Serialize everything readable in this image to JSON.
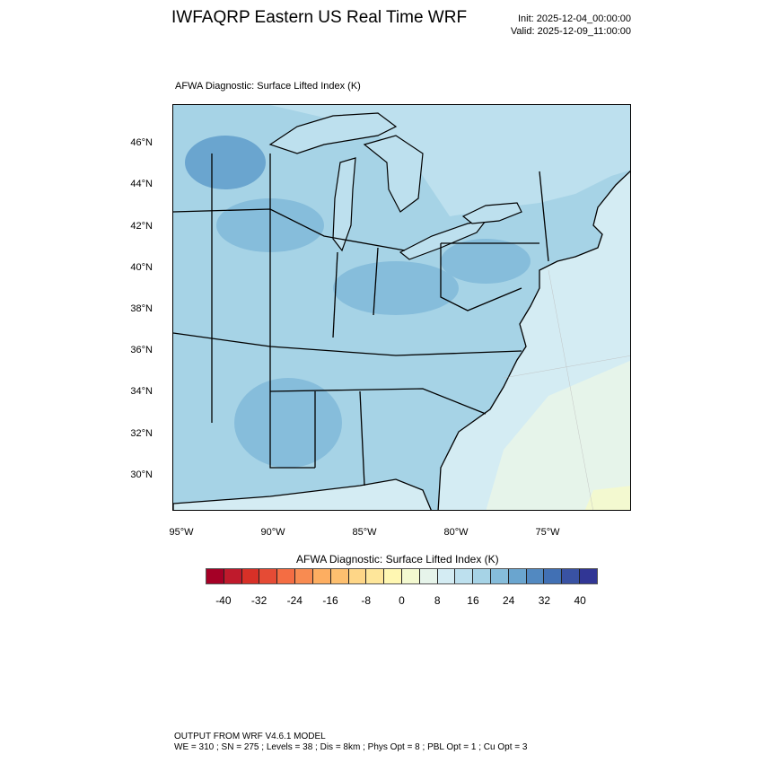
{
  "header": {
    "title": "IWFAQRP Eastern US Real Time WRF",
    "init": "Init: 2025-12-04_00:00:00",
    "valid": "Valid: 2025-12-09_11:00:00"
  },
  "plot": {
    "title": "AFWA Diagnostic: Surface Lifted Index   (K)",
    "lat_labels": [
      "46°N",
      "44°N",
      "42°N",
      "40°N",
      "38°N",
      "36°N",
      "34°N",
      "32°N",
      "30°N"
    ],
    "lon_labels": [
      "95°W",
      "90°W",
      "85°W",
      "80°W",
      "75°W"
    ]
  },
  "colorbar": {
    "title": "AFWA Diagnostic: Surface Lifted Index  (K)",
    "labels": [
      "-40",
      "-32",
      "-24",
      "-16",
      "-8",
      "0",
      "8",
      "16",
      "24",
      "32",
      "40"
    ],
    "colors": [
      "#a50026",
      "#bf1a2c",
      "#d73027",
      "#e54b35",
      "#f46d43",
      "#f88b51",
      "#fdae61",
      "#fdbf6f",
      "#fed687",
      "#fee69a",
      "#fff7b2",
      "#f3f9d0",
      "#e6f4ea",
      "#d4ecf3",
      "#bde0ee",
      "#a6d3e6",
      "#86bddb",
      "#6aa5cf",
      "#5289c1",
      "#4170b4",
      "#3952a3",
      "#313695"
    ]
  },
  "footer": {
    "line1": "OUTPUT FROM WRF V4.6.1 MODEL",
    "line2": "WE = 310 ; SN = 275 ; Levels = 38 ; Dis = 8km ; Phys Opt = 8 ; PBL Opt = 1 ; Cu Opt = 3"
  }
}
